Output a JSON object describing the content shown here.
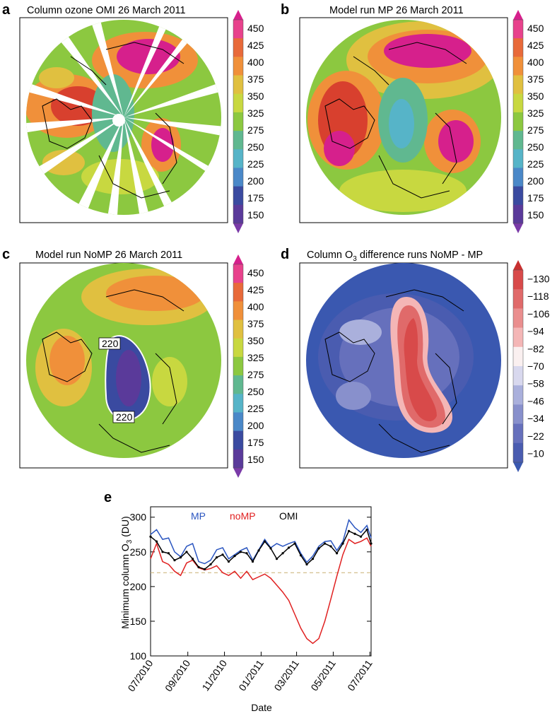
{
  "panels": [
    {
      "id": "a",
      "letter": "a",
      "title": "Column ozone  OMI 26 March 2011",
      "field": "omi"
    },
    {
      "id": "b",
      "letter": "b",
      "title": "Model run MP 26 March 2011",
      "field": "mp"
    },
    {
      "id": "c",
      "letter": "c",
      "title": "Model run NoMP 26 March 2011",
      "field": "nomp",
      "contour_label_top": "220",
      "contour_label_bottom": "220"
    },
    {
      "id": "d",
      "letter": "d",
      "title_main": "Column O",
      "title_sub": "3",
      "title_rest": " difference runs NoMP - MP",
      "field": "diff"
    }
  ],
  "colorbar_ozone": {
    "ticks": [
      "450",
      "425",
      "400",
      "375",
      "350",
      "325",
      "275",
      "250",
      "225",
      "200",
      "175",
      "150"
    ],
    "colors": [
      "#d6208c",
      "#e8428c",
      "#e86a3a",
      "#f0903a",
      "#e0c040",
      "#c8d840",
      "#8cc840",
      "#60b890",
      "#56b4c8",
      "#4a88c8",
      "#3a4aa0",
      "#5a3a9a",
      "#7a3aa8"
    ]
  },
  "colorbar_diff": {
    "ticks": [
      "−130",
      "−118",
      "−106",
      "−94",
      "−82",
      "−70",
      "−58",
      "−46",
      "−34",
      "−22",
      "−10"
    ],
    "colors": [
      "#c83030",
      "#d84a4a",
      "#e06a6a",
      "#ea8e8e",
      "#f4b6b6",
      "#faf0f0",
      "#d8d8ee",
      "#aab0dc",
      "#8890cc",
      "#6670bc",
      "#4a5cb0",
      "#3a58b0"
    ]
  },
  "chart_data": {
    "type": "line",
    "letter": "e",
    "title": "",
    "xlabel": "Date",
    "ylabel_main": "Minimum column O",
    "ylabel_sub": "3",
    "ylabel_unit": " (DU)",
    "ylim": [
      100,
      315
    ],
    "yticks": [
      100,
      150,
      200,
      250,
      300
    ],
    "xticks": [
      "07/2010",
      "09/2010",
      "11/2010",
      "01/2011",
      "03/2011",
      "05/2011",
      "07/2011"
    ],
    "xtick_days": [
      0,
      62,
      123,
      184,
      243,
      304,
      365
    ],
    "xlim_days": [
      0,
      367
    ],
    "reference_line": 220,
    "legend": [
      {
        "name": "MP",
        "color": "#2a55c0"
      },
      {
        "name": "noMP",
        "color": "#e02020"
      },
      {
        "name": "OMI",
        "color": "#000000"
      }
    ],
    "series": [
      {
        "name": "MP",
        "color": "#2a55c0",
        "day": [
          0,
          10,
          20,
          30,
          40,
          50,
          60,
          70,
          80,
          90,
          100,
          110,
          120,
          130,
          140,
          150,
          160,
          170,
          180,
          190,
          200,
          210,
          220,
          230,
          240,
          250,
          260,
          270,
          280,
          290,
          300,
          310,
          320,
          330,
          340,
          350,
          360,
          367
        ],
        "values": [
          275,
          282,
          268,
          270,
          250,
          243,
          258,
          262,
          236,
          233,
          238,
          253,
          256,
          240,
          246,
          252,
          256,
          238,
          253,
          268,
          256,
          262,
          258,
          262,
          265,
          248,
          235,
          244,
          258,
          265,
          266,
          252,
          265,
          296,
          285,
          278,
          288,
          270
        ]
      },
      {
        "name": "noMP",
        "color": "#e02020",
        "day": [
          0,
          10,
          20,
          30,
          40,
          50,
          60,
          70,
          80,
          90,
          100,
          110,
          120,
          130,
          140,
          150,
          160,
          170,
          180,
          190,
          200,
          210,
          220,
          230,
          240,
          250,
          260,
          270,
          280,
          290,
          300,
          310,
          320,
          330,
          340,
          350,
          360,
          367
        ],
        "values": [
          240,
          262,
          236,
          232,
          222,
          216,
          234,
          238,
          227,
          224,
          226,
          230,
          220,
          216,
          222,
          212,
          222,
          210,
          214,
          218,
          212,
          202,
          192,
          180,
          160,
          140,
          125,
          118,
          125,
          150,
          182,
          215,
          246,
          268,
          262,
          265,
          270,
          258
        ]
      },
      {
        "name": "OMI",
        "color": "#000000",
        "day": [
          0,
          10,
          20,
          30,
          40,
          50,
          60,
          70,
          80,
          90,
          100,
          110,
          120,
          130,
          140,
          150,
          160,
          170,
          180,
          190,
          200,
          210,
          220,
          230,
          240,
          250,
          260,
          270,
          280,
          290,
          300,
          310,
          320,
          330,
          340,
          350,
          360,
          367
        ],
        "values": [
          272,
          265,
          250,
          248,
          238,
          242,
          250,
          240,
          228,
          225,
          232,
          242,
          246,
          236,
          244,
          250,
          248,
          236,
          252,
          265,
          255,
          240,
          248,
          256,
          262,
          245,
          232,
          240,
          255,
          262,
          258,
          248,
          262,
          280,
          276,
          272,
          282,
          262
        ]
      }
    ]
  }
}
